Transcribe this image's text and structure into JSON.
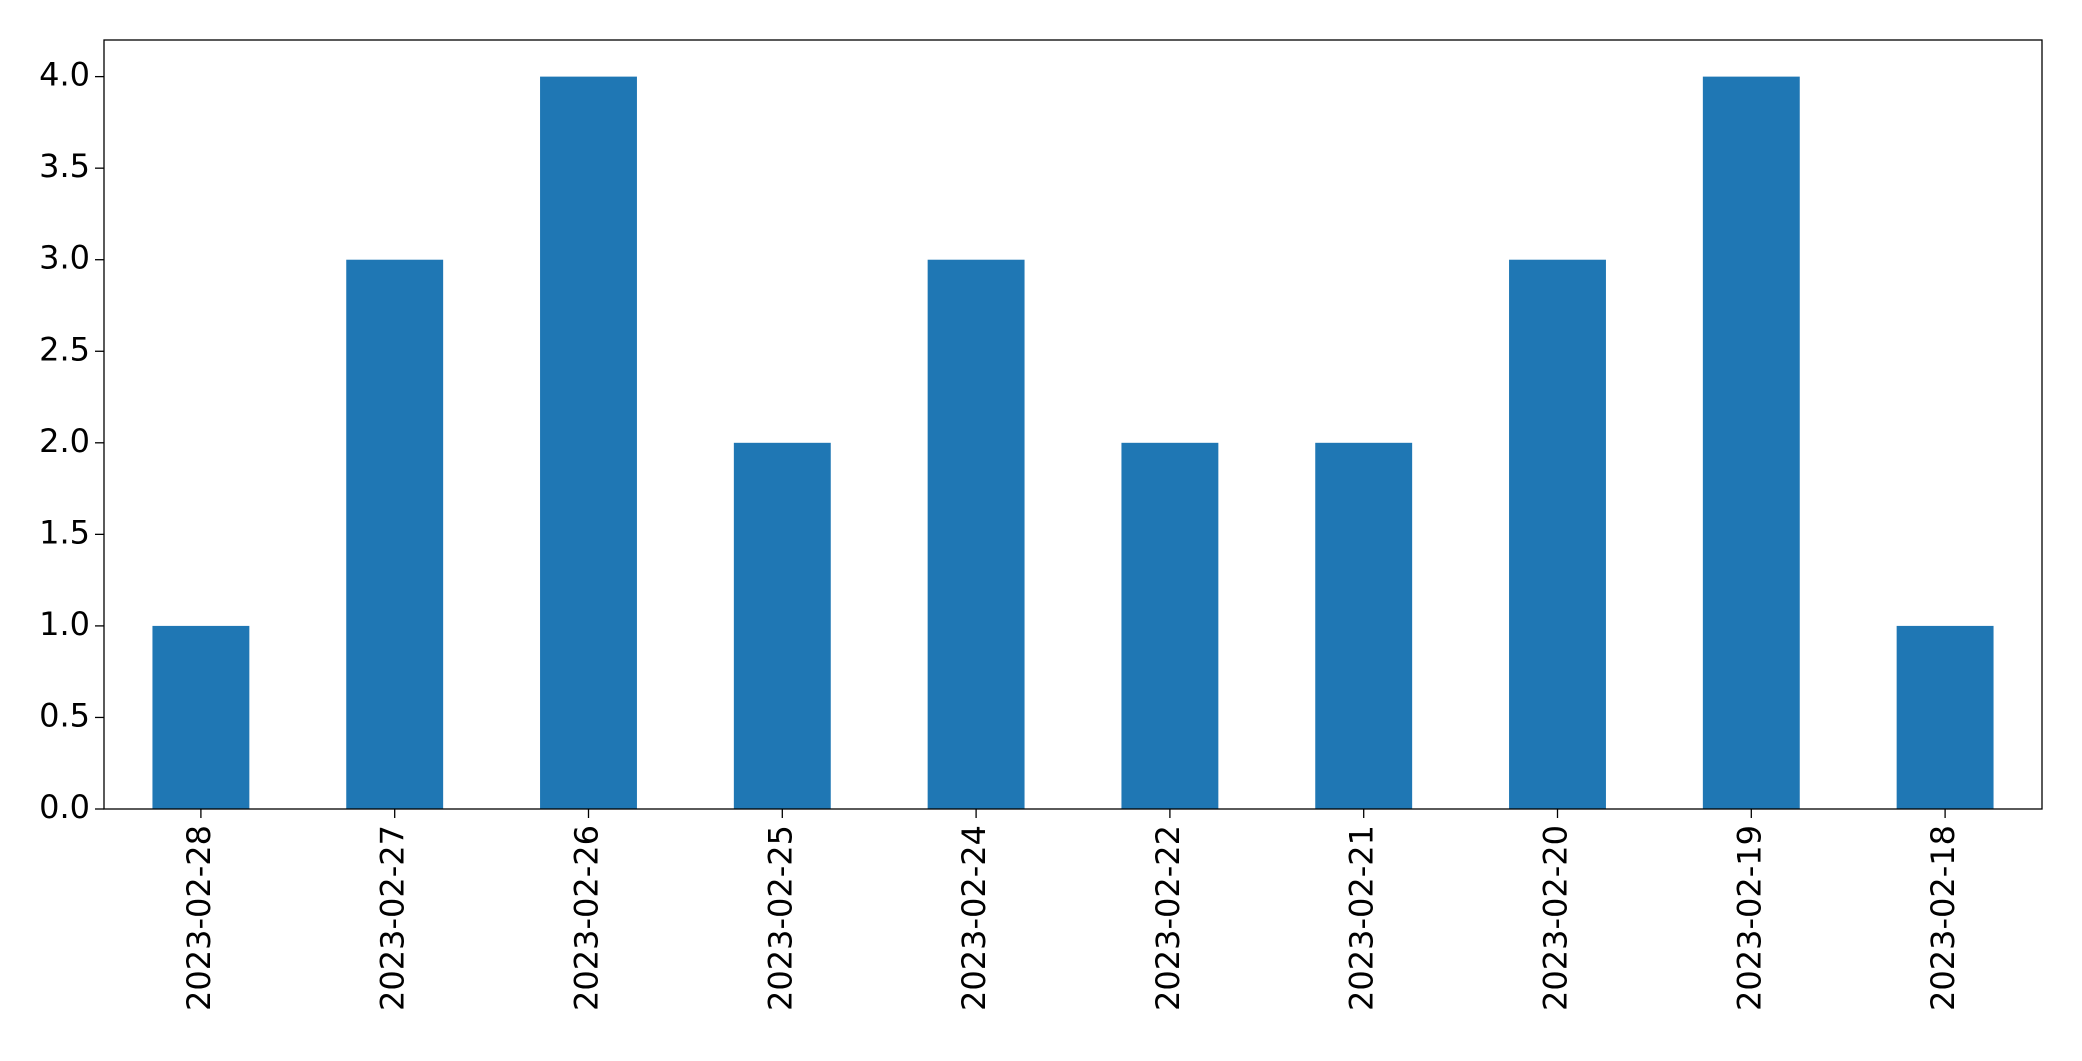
{
  "chart_data": {
    "type": "bar",
    "categories": [
      "2023-02-28",
      "2023-02-27",
      "2023-02-26",
      "2023-02-25",
      "2023-02-24",
      "2023-02-22",
      "2023-02-21",
      "2023-02-20",
      "2023-02-19",
      "2023-02-18"
    ],
    "values": [
      1,
      3,
      4,
      2,
      3,
      2,
      2,
      3,
      4,
      1
    ],
    "color": "#1f77b4",
    "ylim": [
      0,
      4.2
    ],
    "yticks": [
      {
        "value": 0,
        "label": "0.0"
      },
      0.5,
      {
        "value": 1,
        "label": "1.0"
      },
      1.5,
      {
        "value": 2,
        "label": "2.0"
      },
      2.5,
      {
        "value": 3,
        "label": "3.0"
      },
      3.5,
      {
        "value": 4,
        "label": "4.0"
      }
    ],
    "grid": false
  }
}
